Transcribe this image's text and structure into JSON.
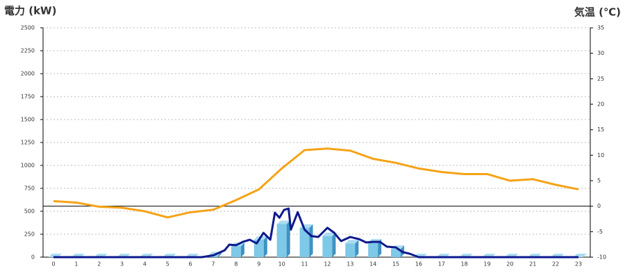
{
  "chart_data": {
    "type": "bar",
    "title": "電力 (kW)",
    "title_color": "#1a73c9",
    "y2_title": "気温 (℃)",
    "y2_title_color": "#f08c1e",
    "categories": [
      "0",
      "1",
      "2",
      "3",
      "4",
      "5",
      "6",
      "7",
      "8",
      "9",
      "10",
      "11",
      "12",
      "13",
      "14",
      "15",
      "16",
      "17",
      "18",
      "19",
      "20",
      "21",
      "22",
      "23"
    ],
    "ylim": [
      0,
      2500
    ],
    "yticks": [
      0,
      250,
      500,
      750,
      1000,
      1250,
      1500,
      1750,
      2000,
      2250,
      2500
    ],
    "y2lim": [
      -10,
      35
    ],
    "y2ticks": [
      -10,
      -5,
      0,
      5,
      10,
      15,
      20,
      25,
      30,
      35
    ],
    "grid": true,
    "series": [
      {
        "type": "bar",
        "color": "#7ec8e8",
        "values": [
          0,
          0,
          0,
          0,
          0,
          0,
          0,
          20,
          120,
          190,
          360,
          320,
          230,
          150,
          160,
          90,
          0,
          0,
          0,
          0,
          0,
          0,
          0,
          0
        ]
      },
      {
        "type": "line",
        "color": "#0d1a8c",
        "x": [
          0,
          6.5,
          7,
          7.5,
          7.7,
          8,
          8.3,
          8.6,
          8.9,
          9.2,
          9.5,
          9.7,
          9.9,
          10.1,
          10.3,
          10.4,
          10.7,
          11,
          11.3,
          11.6,
          12,
          12.3,
          12.6,
          13,
          13.4,
          13.7,
          14,
          14.3,
          14.6,
          15,
          15.3,
          15.6,
          16,
          23
        ],
        "values": [
          0,
          0,
          20,
          75,
          136,
          130,
          167,
          190,
          150,
          265,
          190,
          485,
          430,
          515,
          530,
          300,
          490,
          300,
          230,
          220,
          320,
          265,
          175,
          220,
          195,
          160,
          167,
          167,
          115,
          106,
          55,
          38,
          0,
          0
        ]
      },
      {
        "type": "line",
        "axis": "y2",
        "color": "#f5a316",
        "values": [
          1,
          0.7,
          -0.1,
          -0.3,
          -1,
          -2.2,
          -1.2,
          -0.7,
          1.2,
          3.3,
          7.4,
          11,
          11.3,
          10.9,
          9.3,
          8.5,
          7.4,
          6.7,
          6.3,
          6.3,
          5,
          5.3,
          4.2,
          3.3
        ]
      }
    ]
  }
}
